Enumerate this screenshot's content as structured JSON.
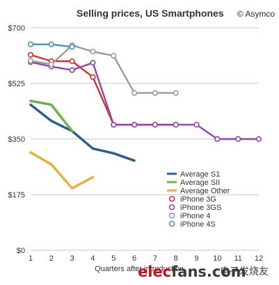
{
  "watermark": {
    "brand_a": "elec",
    "brand_b": "fans",
    "brand_c": ".com",
    "cn": "电子发烧友"
  },
  "chart_data": {
    "type": "line",
    "title": "Selling prices, US Smartphones",
    "source": "© Asymco",
    "xlabel": "Quarters after introduction",
    "ylabel": "",
    "xlim": [
      1,
      12
    ],
    "ylim": [
      0,
      700
    ],
    "x_ticks": [
      1,
      2,
      3,
      4,
      5,
      6,
      7,
      8,
      9,
      10,
      11,
      12
    ],
    "y_ticks": [
      0,
      175,
      350,
      525,
      700
    ],
    "y_tick_labels": [
      "$0",
      "$175",
      "$350",
      "$525",
      "$700"
    ],
    "grid": true,
    "legend_position": "bottom-right",
    "series": [
      {
        "name": "Average S1",
        "style": "line",
        "color": "#2e5e8e",
        "x": [
          1,
          2,
          3,
          4,
          5,
          6
        ],
        "y": [
          458,
          407,
          375,
          320,
          305,
          282
        ]
      },
      {
        "name": "Average SII",
        "style": "line",
        "color": "#6fb04d",
        "x": [
          1,
          2,
          3
        ],
        "y": [
          470,
          458,
          375
        ]
      },
      {
        "name": "Average Other",
        "style": "line",
        "color": "#e6b040",
        "x": [
          1,
          2,
          3,
          4
        ],
        "y": [
          308,
          270,
          195,
          230
        ]
      },
      {
        "name": "iPhone 3G",
        "style": "marker",
        "color": "#cc3333",
        "x": [
          1,
          2,
          3,
          4,
          5,
          6,
          7,
          8
        ],
        "y": [
          615,
          595,
          595,
          545,
          395,
          395,
          395,
          395
        ]
      },
      {
        "name": "iPhone 3GS",
        "style": "marker",
        "color": "#8e44ad",
        "x": [
          1,
          2,
          3,
          4,
          5,
          6,
          7,
          8,
          9,
          10,
          11,
          12
        ],
        "y": [
          592,
          578,
          567,
          590,
          395,
          395,
          395,
          395,
          395,
          350,
          350,
          350
        ]
      },
      {
        "name": "iPhone 4",
        "style": "marker",
        "color": "#999999",
        "x": [
          1,
          2,
          3,
          4,
          5,
          6,
          7,
          8
        ],
        "y": [
          596,
          585,
          645,
          625,
          612,
          495,
          495,
          495
        ]
      },
      {
        "name": "iPhone 4S",
        "style": "marker",
        "color": "#4a90b8",
        "x": [
          1,
          2,
          3
        ],
        "y": [
          648,
          648,
          640
        ]
      }
    ]
  }
}
